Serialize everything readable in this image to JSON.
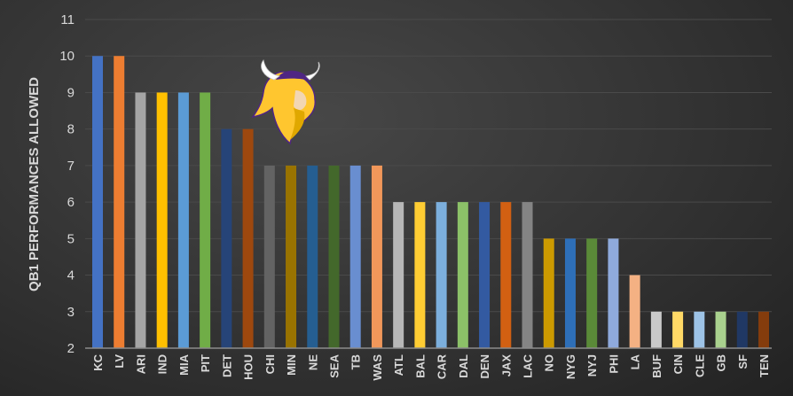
{
  "chart_data": {
    "type": "bar",
    "title": "",
    "xlabel": "",
    "ylabel": "QB1 PERFORMANCES ALLOWED",
    "ylim": [
      2,
      11
    ],
    "yticks": [
      2,
      3,
      4,
      5,
      6,
      7,
      8,
      9,
      10,
      11
    ],
    "grid": true,
    "legend": "none",
    "categories": [
      "KC",
      "LV",
      "ARI",
      "IND",
      "MIA",
      "PIT",
      "DET",
      "HOU",
      "CHI",
      "MIN",
      "NE",
      "SEA",
      "TB",
      "WAS",
      "ATL",
      "BAL",
      "CAR",
      "DAL",
      "DEN",
      "JAX",
      "LAC",
      "NO",
      "NYG",
      "NYJ",
      "PHI",
      "LA",
      "BUF",
      "CIN",
      "CLE",
      "GB",
      "SF",
      "TEN"
    ],
    "values": [
      10,
      10,
      9,
      9,
      9,
      9,
      8,
      8,
      7,
      7,
      7,
      7,
      7,
      7,
      6,
      6,
      6,
      6,
      6,
      6,
      6,
      5,
      5,
      5,
      5,
      4,
      3,
      3,
      3,
      3,
      3,
      3
    ],
    "colors": [
      "#4472c4",
      "#ed7d31",
      "#a5a5a5",
      "#ffc000",
      "#5b9bd5",
      "#70ad47",
      "#264478",
      "#9e480e",
      "#636363",
      "#997300",
      "#255e91",
      "#43682b",
      "#698ed0",
      "#f1975a",
      "#b7b7b7",
      "#ffcd33",
      "#7cafdd",
      "#8cc168",
      "#335aa1",
      "#d26012",
      "#848484",
      "#cc9a00",
      "#2e6fb8",
      "#5a8a38",
      "#8faadc",
      "#f4b183",
      "#c9c9c9",
      "#ffd966",
      "#9dc3e6",
      "#a9d18e",
      "#203864",
      "#843c0c"
    ],
    "annotation_image": "minnesota-vikings-logo"
  }
}
